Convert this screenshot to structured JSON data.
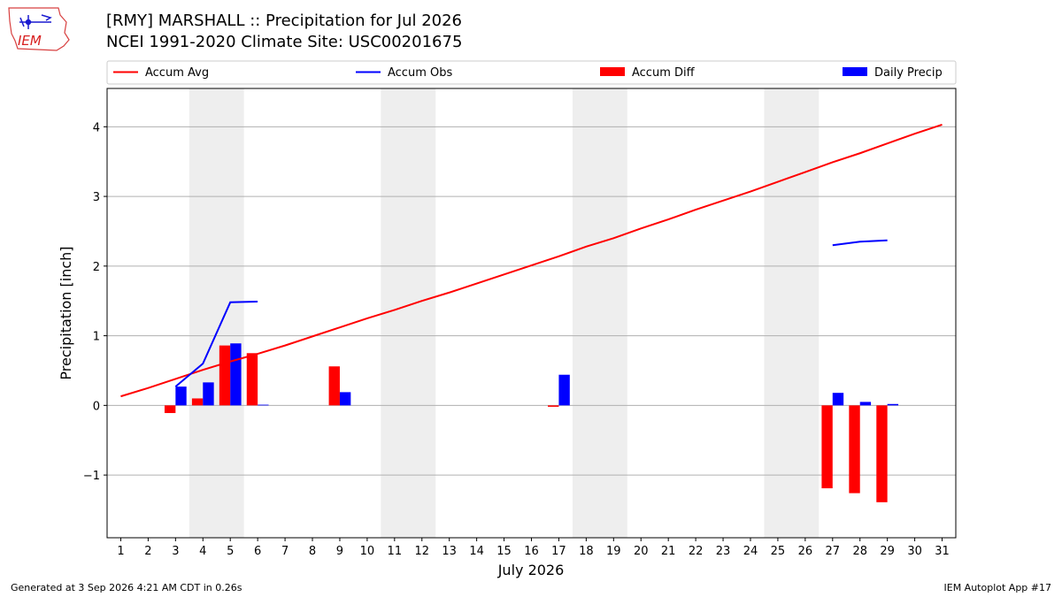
{
  "header": {
    "title_line1": "[RMY] MARSHALL :: Precipitation for Jul 2026",
    "title_line2": "NCEI 1991-2020 Climate Site: USC00201675",
    "logo_text": "IEM"
  },
  "footer": {
    "generated": "Generated at 3 Sep 2026 4:21 AM CDT in 0.26s",
    "app": "IEM Autoplot App #17"
  },
  "colors": {
    "avg": "#ff0000",
    "obs": "#0000ff",
    "diff": "#ff0000",
    "daily": "#0000ff",
    "weekend": "#eeeeee",
    "grid": "#b0b0b0"
  },
  "chart_data": {
    "type": "bar",
    "xlabel": "July 2026",
    "ylabel": "Precipitation [inch]",
    "xlim": [
      0.5,
      31.5
    ],
    "ylim": [
      -1.9,
      4.55
    ],
    "yticks": [
      -1,
      0,
      1,
      2,
      3,
      4
    ],
    "ytick_labels": [
      "−1",
      "0",
      "1",
      "2",
      "3",
      "4"
    ],
    "days": [
      1,
      2,
      3,
      4,
      5,
      6,
      7,
      8,
      9,
      10,
      11,
      12,
      13,
      14,
      15,
      16,
      17,
      18,
      19,
      20,
      21,
      22,
      23,
      24,
      25,
      26,
      27,
      28,
      29,
      30,
      31
    ],
    "weekend_spans": [
      [
        3.5,
        5.5
      ],
      [
        10.5,
        12.5
      ],
      [
        17.5,
        19.5
      ],
      [
        24.5,
        26.5
      ]
    ],
    "grid": "horizontal",
    "legend": {
      "placement": "top",
      "entries": [
        {
          "label": "Accum Avg",
          "kind": "line",
          "color": "#ff0000"
        },
        {
          "label": "Accum Obs",
          "kind": "line",
          "color": "#0000ff"
        },
        {
          "label": "Accum Diff",
          "kind": "bar",
          "color": "#ff0000"
        },
        {
          "label": "Daily Precip",
          "kind": "bar",
          "color": "#0000ff"
        }
      ]
    },
    "series": [
      {
        "name": "Accum Avg",
        "kind": "line",
        "x": [
          1,
          2,
          3,
          4,
          5,
          6,
          7,
          8,
          9,
          10,
          11,
          12,
          13,
          14,
          15,
          16,
          17,
          18,
          19,
          20,
          21,
          22,
          23,
          24,
          25,
          26,
          27,
          28,
          29,
          30,
          31
        ],
        "values": [
          0.13,
          0.25,
          0.38,
          0.51,
          0.63,
          0.74,
          0.86,
          0.99,
          1.12,
          1.25,
          1.37,
          1.5,
          1.62,
          1.75,
          1.88,
          2.01,
          2.14,
          2.28,
          2.4,
          2.54,
          2.67,
          2.81,
          2.94,
          3.07,
          3.21,
          3.35,
          3.49,
          3.62,
          3.76,
          3.9,
          4.03
        ]
      },
      {
        "name": "Accum Obs",
        "kind": "line",
        "segments": [
          {
            "x": [
              3,
              4,
              5,
              6
            ],
            "values": [
              0.27,
              0.6,
              1.48,
              1.49
            ]
          },
          {
            "x": [
              27,
              28,
              29
            ],
            "values": [
              2.3,
              2.35,
              2.37
            ]
          }
        ]
      },
      {
        "name": "Accum Diff",
        "kind": "bar",
        "x": [
          3,
          4,
          5,
          6,
          9,
          17,
          27,
          28,
          29
        ],
        "values": [
          -0.11,
          0.1,
          0.86,
          0.75,
          0.56,
          -0.02,
          -1.19,
          -1.26,
          -1.39
        ]
      },
      {
        "name": "Daily Precip",
        "kind": "bar",
        "x": [
          3,
          4,
          5,
          6,
          9,
          17,
          27,
          28,
          29
        ],
        "values": [
          0.27,
          0.33,
          0.89,
          0.01,
          0.19,
          0.44,
          0.18,
          0.05,
          0.02
        ]
      }
    ]
  }
}
